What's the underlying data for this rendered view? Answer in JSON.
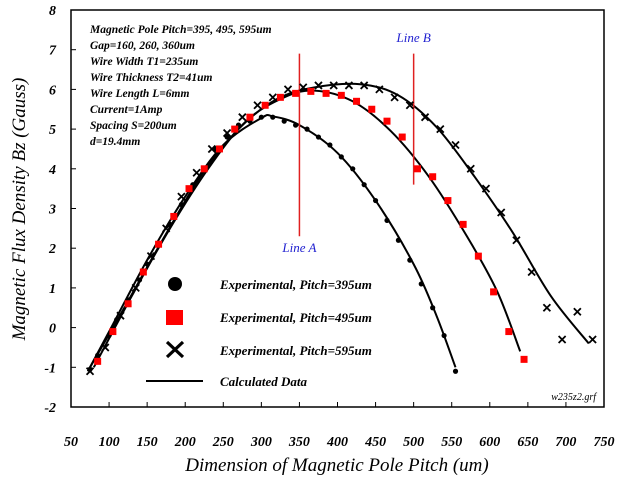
{
  "chart_data": {
    "type": "scatter",
    "xlabel": "Dimension of Magnetic Pole Pitch (um)",
    "ylabel": "Magnetic Flux Density Bz (Gauss)",
    "xlim": [
      50,
      750
    ],
    "ylim": [
      -2,
      8
    ],
    "x_ticks": [
      50,
      100,
      150,
      200,
      250,
      300,
      350,
      400,
      450,
      500,
      550,
      600,
      650,
      700,
      750
    ],
    "y_ticks": [
      -2,
      -1,
      0,
      1,
      2,
      3,
      4,
      5,
      6,
      7,
      8
    ],
    "grid": false,
    "legend_position": "lower-left",
    "annotations": [
      "Magnetic Pole Pitch=395, 495, 595um",
      "Gap=160, 260, 360um",
      "Wire Width T1=235um",
      "Wire Thickness T2=41um",
      "Wire Length L=6mm",
      "Current=1Amp",
      "Spacing S=200um",
      "d=19.4mm"
    ],
    "file_label": "w235z2.grf",
    "vertical_lines": [
      {
        "label": "Line A",
        "x": 350,
        "y_range": [
          2.3,
          6.9
        ],
        "label_y": 1.9
      },
      {
        "label": "Line B",
        "x": 500,
        "y_range": [
          3.6,
          6.9
        ],
        "label_y": 7.2
      }
    ],
    "series": [
      {
        "name": "Experimental, Pitch=395um",
        "marker": "circle",
        "color": "#000000",
        "points": [
          [
            75,
            -1.05
          ],
          [
            85,
            -0.7
          ],
          [
            100,
            -0.2
          ],
          [
            110,
            0.2
          ],
          [
            125,
            0.7
          ],
          [
            140,
            1.2
          ],
          [
            150,
            1.6
          ],
          [
            165,
            2.1
          ],
          [
            180,
            2.6
          ],
          [
            195,
            3.1
          ],
          [
            210,
            3.6
          ],
          [
            225,
            4.0
          ],
          [
            240,
            4.5
          ],
          [
            255,
            4.8
          ],
          [
            270,
            5.1
          ],
          [
            285,
            5.2
          ],
          [
            300,
            5.3
          ],
          [
            315,
            5.3
          ],
          [
            330,
            5.2
          ],
          [
            345,
            5.1
          ],
          [
            360,
            5.0
          ],
          [
            375,
            4.8
          ],
          [
            390,
            4.6
          ],
          [
            405,
            4.3
          ],
          [
            420,
            4.0
          ],
          [
            435,
            3.6
          ],
          [
            450,
            3.2
          ],
          [
            465,
            2.7
          ],
          [
            480,
            2.2
          ],
          [
            495,
            1.7
          ],
          [
            510,
            1.1
          ],
          [
            525,
            0.5
          ],
          [
            540,
            -0.2
          ],
          [
            555,
            -1.1
          ]
        ]
      },
      {
        "name": "Experimental, Pitch=495um",
        "marker": "square",
        "color": "#ff0000",
        "points": [
          [
            85,
            -0.85
          ],
          [
            105,
            -0.1
          ],
          [
            125,
            0.6
          ],
          [
            145,
            1.4
          ],
          [
            165,
            2.1
          ],
          [
            185,
            2.8
          ],
          [
            205,
            3.5
          ],
          [
            225,
            4.0
          ],
          [
            245,
            4.5
          ],
          [
            265,
            5.0
          ],
          [
            285,
            5.3
          ],
          [
            305,
            5.6
          ],
          [
            325,
            5.8
          ],
          [
            345,
            5.9
          ],
          [
            365,
            5.95
          ],
          [
            385,
            5.9
          ],
          [
            405,
            5.85
          ],
          [
            425,
            5.7
          ],
          [
            445,
            5.5
          ],
          [
            465,
            5.2
          ],
          [
            485,
            4.8
          ],
          [
            505,
            4.0
          ],
          [
            525,
            3.8
          ],
          [
            545,
            3.2
          ],
          [
            565,
            2.6
          ],
          [
            585,
            1.8
          ],
          [
            605,
            0.9
          ],
          [
            625,
            -0.1
          ],
          [
            645,
            -0.8
          ]
        ]
      },
      {
        "name": "Experimental, Pitch=595um",
        "marker": "x",
        "color": "#000000",
        "points": [
          [
            75,
            -1.1
          ],
          [
            95,
            -0.5
          ],
          [
            115,
            0.3
          ],
          [
            135,
            1.0
          ],
          [
            155,
            1.8
          ],
          [
            175,
            2.5
          ],
          [
            195,
            3.3
          ],
          [
            215,
            3.9
          ],
          [
            235,
            4.5
          ],
          [
            255,
            4.9
          ],
          [
            275,
            5.3
          ],
          [
            295,
            5.6
          ],
          [
            315,
            5.8
          ],
          [
            335,
            6.0
          ],
          [
            355,
            6.05
          ],
          [
            375,
            6.1
          ],
          [
            395,
            6.1
          ],
          [
            415,
            6.1
          ],
          [
            435,
            6.1
          ],
          [
            455,
            6.0
          ],
          [
            475,
            5.8
          ],
          [
            495,
            5.6
          ],
          [
            515,
            5.3
          ],
          [
            535,
            5.0
          ],
          [
            555,
            4.6
          ],
          [
            575,
            4.0
          ],
          [
            595,
            3.5
          ],
          [
            615,
            2.9
          ],
          [
            635,
            2.2
          ],
          [
            655,
            1.4
          ],
          [
            675,
            0.5
          ],
          [
            695,
            -0.3
          ],
          [
            715,
            0.4
          ],
          [
            735,
            -0.3
          ]
        ]
      },
      {
        "name": "Calculated Data",
        "marker": "line",
        "color": "#000000",
        "curves": [
          {
            "peak_x": 315,
            "peak_y": 5.32,
            "points": [
              [
                72,
                -1.1
              ],
              [
                100,
                -0.1
              ],
              [
                150,
                1.7
              ],
              [
                200,
                3.3
              ],
              [
                250,
                4.6
              ],
              [
                300,
                5.28
              ],
              [
                315,
                5.32
              ],
              [
                350,
                5.1
              ],
              [
                400,
                4.4
              ],
              [
                450,
                3.2
              ],
              [
                500,
                1.6
              ],
              [
                530,
                0.3
              ],
              [
                555,
                -1.0
              ]
            ]
          },
          {
            "peak_x": 370,
            "peak_y": 5.97,
            "points": [
              [
                80,
                -1.0
              ],
              [
                130,
                0.8
              ],
              [
                180,
                2.5
              ],
              [
                230,
                4.0
              ],
              [
                280,
                5.2
              ],
              [
                330,
                5.8
              ],
              [
                370,
                5.97
              ],
              [
                420,
                5.7
              ],
              [
                470,
                4.95
              ],
              [
                520,
                3.8
              ],
              [
                570,
                2.3
              ],
              [
                610,
                0.9
              ],
              [
                640,
                -0.6
              ]
            ]
          },
          {
            "peak_x": 430,
            "peak_y": 6.13,
            "points": [
              [
                72,
                -1.1
              ],
              [
                120,
                0.5
              ],
              [
                170,
                2.2
              ],
              [
                220,
                3.8
              ],
              [
                270,
                5.0
              ],
              [
                320,
                5.75
              ],
              [
                370,
                6.05
              ],
              [
                430,
                6.13
              ],
              [
                480,
                5.85
              ],
              [
                530,
                5.05
              ],
              [
                580,
                3.8
              ],
              [
                630,
                2.4
              ],
              [
                680,
                0.8
              ],
              [
                730,
                -0.4
              ]
            ]
          }
        ]
      }
    ]
  }
}
